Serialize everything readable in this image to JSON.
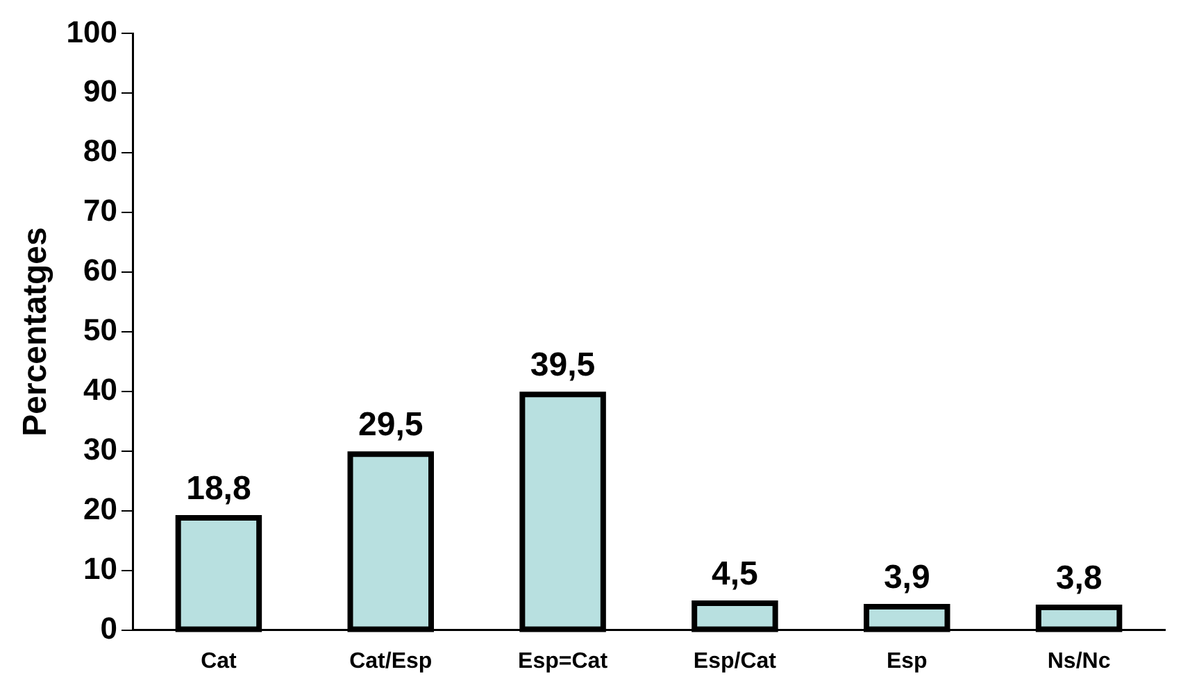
{
  "chart_data": {
    "type": "bar",
    "ylabel": "Percentatges",
    "categories": [
      "Cat",
      "Cat/Esp",
      "Esp=Cat",
      "Esp/Cat",
      "Esp",
      "Ns/Nc"
    ],
    "values": [
      18.8,
      29.5,
      39.5,
      4.5,
      3.9,
      3.8
    ],
    "value_labels": [
      "18,8",
      "29,5",
      "39,5",
      "4,5",
      "3,9",
      "3,8"
    ],
    "color": "#b8e0e0",
    "ylim": [
      0,
      100
    ],
    "yticks": [
      0,
      10,
      20,
      30,
      40,
      50,
      60,
      70,
      80,
      90,
      100
    ]
  }
}
